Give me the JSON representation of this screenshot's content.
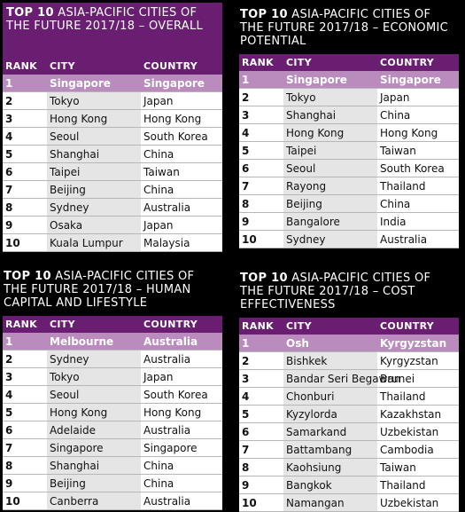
{
  "panels": [
    {
      "title_bold": "TOP 10",
      "title_rest": " ASIA-PACIFIC CITIES OF THE FUTURE 2017/18 – OVERALL",
      "headers": {
        "rank": "RANK",
        "city": "CITY",
        "country": "COUNTRY"
      },
      "rows": [
        {
          "rank": "1",
          "city": "Singapore",
          "country": "Singapore"
        },
        {
          "rank": "2",
          "city": "Tokyo",
          "country": "Japan"
        },
        {
          "rank": "3",
          "city": "Hong Kong",
          "country": "Hong Kong"
        },
        {
          "rank": "4",
          "city": "Seoul",
          "country": "South Korea"
        },
        {
          "rank": "5",
          "city": "Shanghai",
          "country": "China"
        },
        {
          "rank": "6",
          "city": "Taipei",
          "country": "Taiwan"
        },
        {
          "rank": "7",
          "city": "Beijing",
          "country": "China"
        },
        {
          "rank": "8",
          "city": "Sydney",
          "country": "Australia"
        },
        {
          "rank": "9",
          "city": "Osaka",
          "country": "Japan"
        },
        {
          "rank": "10",
          "city": "Kuala Lumpur",
          "country": "Malaysia"
        }
      ]
    },
    {
      "title_bold": "TOP 10",
      "title_rest": " ASIA-PACIFIC CITIES OF THE FUTURE 2017/18 – ECONOMIC POTENTIAL",
      "headers": {
        "rank": "RANK",
        "city": "CITY",
        "country": "COUNTRY"
      },
      "rows": [
        {
          "rank": "1",
          "city": "Singapore",
          "country": "Singapore"
        },
        {
          "rank": "2",
          "city": "Tokyo",
          "country": "Japan"
        },
        {
          "rank": "3",
          "city": "Shanghai",
          "country": "China"
        },
        {
          "rank": "4",
          "city": "Hong Kong",
          "country": "Hong Kong"
        },
        {
          "rank": "5",
          "city": "Taipei",
          "country": "Taiwan"
        },
        {
          "rank": "6",
          "city": "Seoul",
          "country": "South Korea"
        },
        {
          "rank": "7",
          "city": "Rayong",
          "country": "Thailand"
        },
        {
          "rank": "8",
          "city": "Beijing",
          "country": "China"
        },
        {
          "rank": "9",
          "city": "Bangalore",
          "country": "India"
        },
        {
          "rank": "10",
          "city": "Sydney",
          "country": "Australia"
        }
      ]
    },
    {
      "title_bold": "TOP 10",
      "title_rest": " ASIA-PACIFIC CITIES OF THE FUTURE 2017/18 – HUMAN CAPITAL AND LIFESTYLE",
      "headers": {
        "rank": "RANK",
        "city": "CITY",
        "country": "COUNTRY"
      },
      "rows": [
        {
          "rank": "1",
          "city": "Melbourne",
          "country": "Australia"
        },
        {
          "rank": "2",
          "city": "Sydney",
          "country": "Australia"
        },
        {
          "rank": "3",
          "city": "Tokyo",
          "country": "Japan"
        },
        {
          "rank": "4",
          "city": "Seoul",
          "country": "South Korea"
        },
        {
          "rank": "5",
          "city": "Hong Kong",
          "country": "Hong Kong"
        },
        {
          "rank": "6",
          "city": "Adelaide",
          "country": "Australia"
        },
        {
          "rank": "7",
          "city": "Singapore",
          "country": "Singapore"
        },
        {
          "rank": "8",
          "city": "Shanghai",
          "country": "China"
        },
        {
          "rank": "9",
          "city": "Beijing",
          "country": "China"
        },
        {
          "rank": "10",
          "city": "Canberra",
          "country": "Australia"
        }
      ]
    },
    {
      "title_bold": "TOP 10",
      "title_rest": " ASIA-PACIFIC CITIES OF THE FUTURE 2017/18 – COST EFFECTIVENESS",
      "headers": {
        "rank": "RANK",
        "city": "CITY",
        "country": "COUNTRY"
      },
      "rows": [
        {
          "rank": "1",
          "city": "Osh",
          "country": "Kyrgyzstan"
        },
        {
          "rank": "2",
          "city": "Bishkek",
          "country": "Kyrgyzstan"
        },
        {
          "rank": "3",
          "city": "Bandar Seri Begawan",
          "country": "Brunei"
        },
        {
          "rank": "4",
          "city": "Chonburi",
          "country": "Thailand"
        },
        {
          "rank": "5",
          "city": "Kyzylorda",
          "country": "Kazakhstan"
        },
        {
          "rank": "6",
          "city": "Samarkand",
          "country": "Uzbekistan"
        },
        {
          "rank": "7",
          "city": "Battambang",
          "country": "Cambodia"
        },
        {
          "rank": "8",
          "city": "Kaohsiung",
          "country": "Taiwan"
        },
        {
          "rank": "9",
          "city": "Bangkok",
          "country": "Thailand"
        },
        {
          "rank": "10",
          "city": "Namangan",
          "country": "Uzbekistan"
        }
      ]
    }
  ]
}
